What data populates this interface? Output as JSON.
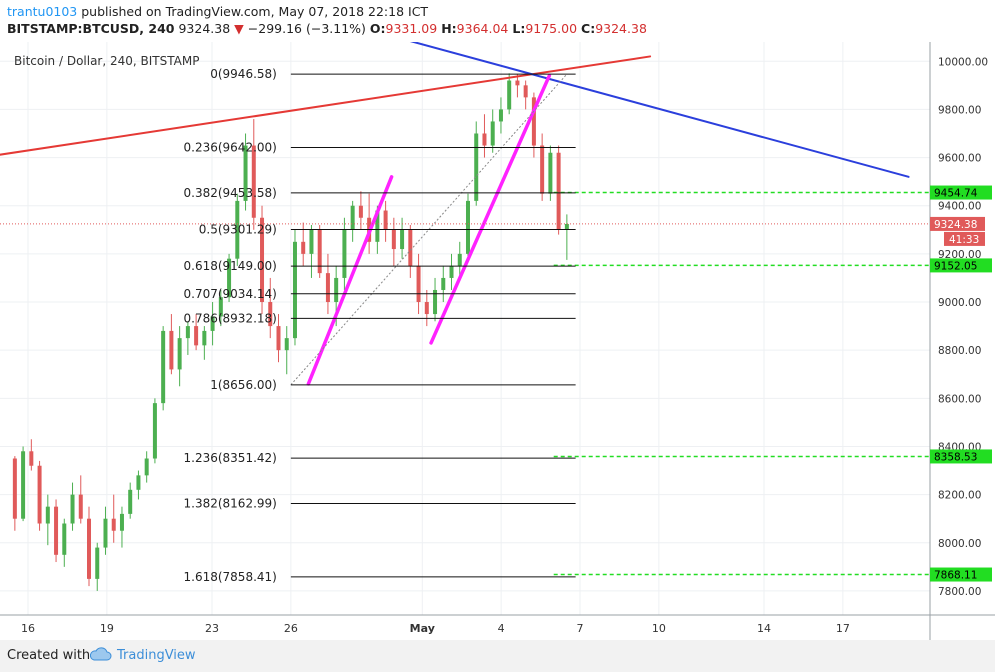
{
  "header": {
    "user": "trantu0103",
    "published": "published on TradingView.com, May 07, 2018 22:18 ICT",
    "symbol": "BITSTAMP:BTCUSD, 240",
    "last": "9324.38",
    "change": "−299.16 (−3.11%)",
    "o_label": "O:",
    "o_value": "9331.09",
    "h_label": "H:",
    "h_value": "9364.04",
    "l_label": "L:",
    "l_value": "9175.00",
    "c_label": "C:",
    "c_value": "9324.38"
  },
  "footer": {
    "created_with": "Created with",
    "brand": "TradingView"
  },
  "colors": {
    "up": "#4caf50",
    "down": "#e05a5a",
    "red_line": "#e53935",
    "blue_line": "#2b3fdc",
    "magenta": "#ff22ff",
    "green_dash": "#22dd22",
    "price_label": "#e05a5a"
  },
  "chart_data": {
    "type": "candlestick",
    "title": "Bitcoin / Dollar, 240, BITSTAMP",
    "ylim": [
      7700,
      10080
    ],
    "y_ticks": [
      "10000.00",
      "9800.00",
      "9600.00",
      "9400.00",
      "9200.00",
      "9000.00",
      "8800.00",
      "8600.00",
      "8400.00",
      "8200.00",
      "8000.00",
      "7800.00"
    ],
    "x_ticks": [
      "16",
      "19",
      "23",
      "26",
      "May",
      "4",
      "7",
      "10",
      "14",
      "17"
    ],
    "x_tick_dates": [
      "2018-04-16",
      "2018-04-19",
      "2018-04-23",
      "2018-04-26",
      "2018-05-01",
      "2018-05-04",
      "2018-05-07",
      "2018-05-10",
      "2018-05-14",
      "2018-05-17"
    ],
    "candles": [
      [
        8350,
        8360,
        8050,
        8100
      ],
      [
        8100,
        8400,
        8090,
        8380
      ],
      [
        8380,
        8430,
        8300,
        8320
      ],
      [
        8320,
        8340,
        8050,
        8080
      ],
      [
        8080,
        8200,
        7990,
        8150
      ],
      [
        8150,
        8180,
        7920,
        7950
      ],
      [
        7950,
        8100,
        7900,
        8080
      ],
      [
        8080,
        8250,
        8050,
        8200
      ],
      [
        8200,
        8280,
        8080,
        8100
      ],
      [
        8100,
        8150,
        7820,
        7850
      ],
      [
        7850,
        8000,
        7800,
        7980
      ],
      [
        7980,
        8150,
        7950,
        8100
      ],
      [
        8100,
        8200,
        8000,
        8050
      ],
      [
        8050,
        8150,
        7980,
        8120
      ],
      [
        8120,
        8250,
        8100,
        8220
      ],
      [
        8220,
        8300,
        8180,
        8280
      ],
      [
        8280,
        8380,
        8250,
        8350
      ],
      [
        8350,
        8600,
        8330,
        8580
      ],
      [
        8580,
        8900,
        8550,
        8880
      ],
      [
        8880,
        8950,
        8700,
        8720
      ],
      [
        8720,
        8900,
        8650,
        8850
      ],
      [
        8850,
        8920,
        8780,
        8900
      ],
      [
        8900,
        8950,
        8800,
        8820
      ],
      [
        8820,
        8900,
        8760,
        8880
      ],
      [
        8880,
        9000,
        8820,
        8940
      ],
      [
        8940,
        9050,
        8900,
        9020
      ],
      [
        9020,
        9200,
        9000,
        9180
      ],
      [
        9180,
        9450,
        9150,
        9420
      ],
      [
        9420,
        9700,
        9380,
        9650
      ],
      [
        9650,
        9760,
        9300,
        9350
      ],
      [
        9350,
        9400,
        8950,
        9000
      ],
      [
        9000,
        9100,
        8850,
        8900
      ],
      [
        8900,
        8950,
        8750,
        8800
      ],
      [
        8800,
        8900,
        8700,
        8850
      ],
      [
        8850,
        9300,
        8820,
        9250
      ],
      [
        9250,
        9330,
        9150,
        9200
      ],
      [
        9200,
        9320,
        9100,
        9300
      ],
      [
        9300,
        9320,
        9100,
        9120
      ],
      [
        9120,
        9200,
        8950,
        9000
      ],
      [
        9000,
        9150,
        8900,
        9100
      ],
      [
        9100,
        9350,
        9050,
        9300
      ],
      [
        9300,
        9420,
        9250,
        9400
      ],
      [
        9400,
        9460,
        9300,
        9350
      ],
      [
        9350,
        9450,
        9200,
        9250
      ],
      [
        9250,
        9400,
        9200,
        9380
      ],
      [
        9380,
        9420,
        9250,
        9300
      ],
      [
        9300,
        9350,
        9150,
        9220
      ],
      [
        9220,
        9350,
        9180,
        9300
      ],
      [
        9300,
        9320,
        9100,
        9150
      ],
      [
        9150,
        9200,
        8950,
        9000
      ],
      [
        9000,
        9050,
        8900,
        8950
      ],
      [
        8950,
        9100,
        8920,
        9050
      ],
      [
        9050,
        9150,
        9000,
        9100
      ],
      [
        9100,
        9200,
        9050,
        9150
      ],
      [
        9150,
        9250,
        9100,
        9200
      ],
      [
        9200,
        9450,
        9180,
        9420
      ],
      [
        9420,
        9750,
        9400,
        9700
      ],
      [
        9700,
        9780,
        9600,
        9650
      ],
      [
        9650,
        9800,
        9620,
        9750
      ],
      [
        9750,
        9850,
        9700,
        9800
      ],
      [
        9800,
        9950,
        9780,
        9920
      ],
      [
        9920,
        9946,
        9850,
        9900
      ],
      [
        9900,
        9920,
        9800,
        9850
      ],
      [
        9850,
        9870,
        9600,
        9650
      ],
      [
        9650,
        9700,
        9420,
        9450
      ],
      [
        9450,
        9650,
        9420,
        9620
      ],
      [
        9620,
        9650,
        9280,
        9300
      ],
      [
        9300,
        9364,
        9175,
        9324
      ]
    ],
    "fib_levels": [
      {
        "ratio": "0",
        "price": 9946.58
      },
      {
        "ratio": "0.236",
        "price": 9642.0
      },
      {
        "ratio": "0.382",
        "price": 9453.58
      },
      {
        "ratio": "0.5",
        "price": 9301.29
      },
      {
        "ratio": "0.618",
        "price": 9149.0
      },
      {
        "ratio": "0.707",
        "price": 9034.14
      },
      {
        "ratio": "0.786",
        "price": 8932.18
      },
      {
        "ratio": "1",
        "price": 8656.0
      },
      {
        "ratio": "1.236",
        "price": 8351.42
      },
      {
        "ratio": "1.382",
        "price": 8162.99
      },
      {
        "ratio": "1.618",
        "price": 7858.41
      }
    ],
    "price_labels": [
      {
        "text": "9454.74",
        "value": 9454.74
      },
      {
        "text": "9152.05",
        "value": 9152.05
      },
      {
        "text": "8358.53",
        "value": 8358.53
      },
      {
        "text": "7868.11",
        "value": 7868.11
      }
    ],
    "last_price": {
      "text": "9324.38",
      "value": 9324.38,
      "countdown": "41:33"
    },
    "trendlines": [
      {
        "name": "red-trendline",
        "start": [
          "2018-04-13",
          9580
        ],
        "end": [
          "2018-05-09 16:00",
          10020
        ]
      },
      {
        "name": "blue-trendline",
        "start": [
          "2018-04-30",
          10100
        ],
        "end": [
          "2018-05-19 12:00",
          9520
        ]
      },
      {
        "name": "magenta-leg-1",
        "start": [
          "2018-04-26 16:00",
          8660
        ],
        "end": [
          "2018-04-29 20:00",
          9520
        ]
      },
      {
        "name": "magenta-leg-2",
        "start": [
          "2018-05-01 08:00",
          8830
        ],
        "end": [
          "2018-05-05 20:00",
          9940
        ]
      }
    ]
  }
}
